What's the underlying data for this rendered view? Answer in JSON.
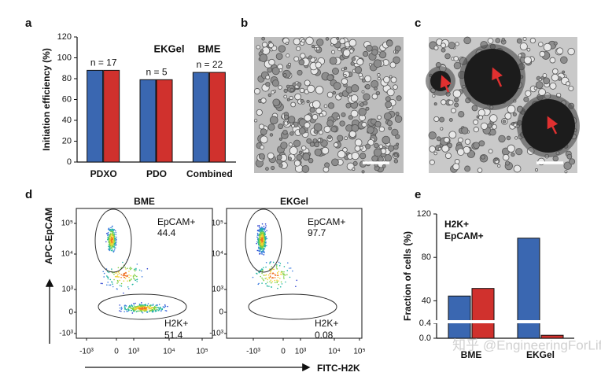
{
  "panel_labels": [
    "a",
    "b",
    "c",
    "d",
    "e"
  ],
  "chart_data": [
    {
      "type": "bar",
      "y_label": "Initiation efficiency (%)",
      "categories": [
        "PDXO",
        "PDO",
        "Combined"
      ],
      "series": [
        {
          "name": "EKGel",
          "color": "#3a67b1",
          "values": [
            88,
            79,
            86
          ]
        },
        {
          "name": "BME",
          "color": "#d0312d",
          "values": [
            88,
            79,
            86
          ]
        }
      ],
      "annotations": [
        "n = 17",
        "n = 5",
        "n = 22"
      ],
      "ylim": [
        0,
        120
      ],
      "yticks": [
        0,
        20,
        40,
        60,
        80,
        100,
        120
      ]
    },
    {
      "type": "bar",
      "y_label": "Fraction of cells (%)",
      "categories": [
        "BME",
        "EKGel"
      ],
      "series": [
        {
          "name": "EpCAM+",
          "color": "#3a67b1",
          "values": [
            44.4,
            97.7
          ]
        },
        {
          "name": "H2K+",
          "color": "#d0312d",
          "values": [
            51.4,
            0.08
          ]
        }
      ],
      "legend_order": [
        1,
        0
      ],
      "ylim": [
        0,
        120
      ],
      "ybreak": [
        0.4,
        20
      ],
      "yticks": [
        {
          "value": 0,
          "label": "0.0"
        },
        0.4,
        40,
        80,
        120
      ]
    }
  ],
  "flow": {
    "y_label": "APC-EpCAM",
    "x_label": "FITC-H2K",
    "yticks": [
      "10⁵",
      "10⁴",
      "10³",
      "0",
      "-10³"
    ],
    "xticks": [
      "-10³",
      "0",
      "10³",
      "10⁴",
      "10⁵"
    ],
    "plots": [
      {
        "title": "BME",
        "gates": [
          {
            "name": "EpCAM+",
            "value": 44.4
          },
          {
            "name": "H2K+",
            "value": 51.4
          }
        ]
      },
      {
        "title": "EKGel",
        "gates": [
          {
            "name": "EpCAM+",
            "value": 97.7
          },
          {
            "name": "H2K+",
            "value": 0.08
          }
        ]
      }
    ]
  },
  "watermark": "知乎 @EngineeringForLife"
}
